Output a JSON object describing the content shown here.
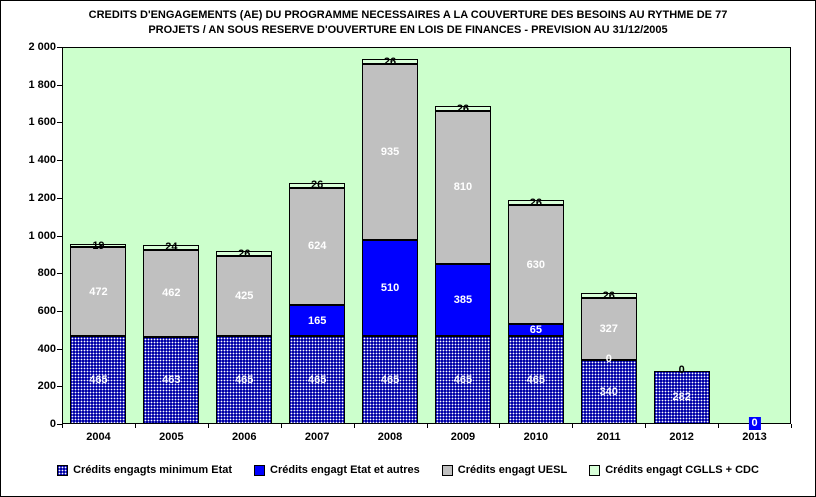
{
  "chart_data": {
    "type": "bar",
    "stacked": true,
    "title": "CREDITS D'ENGAGEMENTS (AE) DU PROGRAMME NECESSAIRES A LA COUVERTURE DES BESOINS AU RYTHME DE 77 PROJETS / AN SOUS RESERVE D'OUVERTURE EN LOIS DE FINANCES - PREVISION AU 31/12/2005",
    "title_line1": "CREDITS D'ENGAGEMENTS (AE) DU PROGRAMME NECESSAIRES A LA COUVERTURE DES BESOINS AU RYTHME DE 77",
    "title_line2": "PROJETS / AN SOUS RESERVE D'OUVERTURE EN LOIS DE FINANCES - PREVISION AU 31/12/2005",
    "categories": [
      "2004",
      "2005",
      "2006",
      "2007",
      "2008",
      "2009",
      "2010",
      "2011",
      "2012",
      "2013"
    ],
    "y_axis": {
      "min": 0,
      "max": 2000,
      "step": 200,
      "tick_labels": [
        "2 000",
        "1 800",
        "1 600",
        "1 400",
        "1 200",
        "1 000",
        "800",
        "600",
        "400",
        "200",
        "0"
      ]
    },
    "grid": false,
    "plot_bg": "#CCFFCC",
    "legend_position": "bottom",
    "series": [
      {
        "name": "Crédits engagts minimum Etat",
        "color": "#0000A8",
        "pattern": "dots",
        "label_color": "#FFFFFF",
        "values": [
          465,
          463,
          465,
          465,
          465,
          465,
          465,
          340,
          282,
          0
        ]
      },
      {
        "name": "Crédits engagt Etat et autres",
        "color": "#0000FF",
        "pattern": "solid",
        "label_color": "#FFFFFF",
        "values": [
          0,
          0,
          0,
          165,
          510,
          385,
          65,
          0,
          0,
          0
        ]
      },
      {
        "name": "Crédits engagt UESL",
        "color": "#C0C0C0",
        "pattern": "solid",
        "label_color": "#FFFFFF",
        "values": [
          472,
          462,
          425,
          624,
          935,
          810,
          630,
          327,
          0,
          0
        ]
      },
      {
        "name": "Crédits engagt CGLLS + CDC",
        "color": "#D8FFD8",
        "pattern": "solid",
        "label_color": "#000000",
        "values": [
          19,
          24,
          26,
          26,
          26,
          26,
          26,
          26,
          0,
          0
        ]
      }
    ],
    "zero_labels": [
      {
        "category": "2011",
        "series_index": 1,
        "text": "0",
        "color": "#FFFFFF"
      },
      {
        "category": "2012",
        "series_index": 3,
        "text": "0",
        "color": "#000000"
      },
      {
        "category": "2013",
        "series_index": 0,
        "text": "0",
        "color": "#FFFFFF",
        "bg": "#0000FF"
      }
    ]
  }
}
